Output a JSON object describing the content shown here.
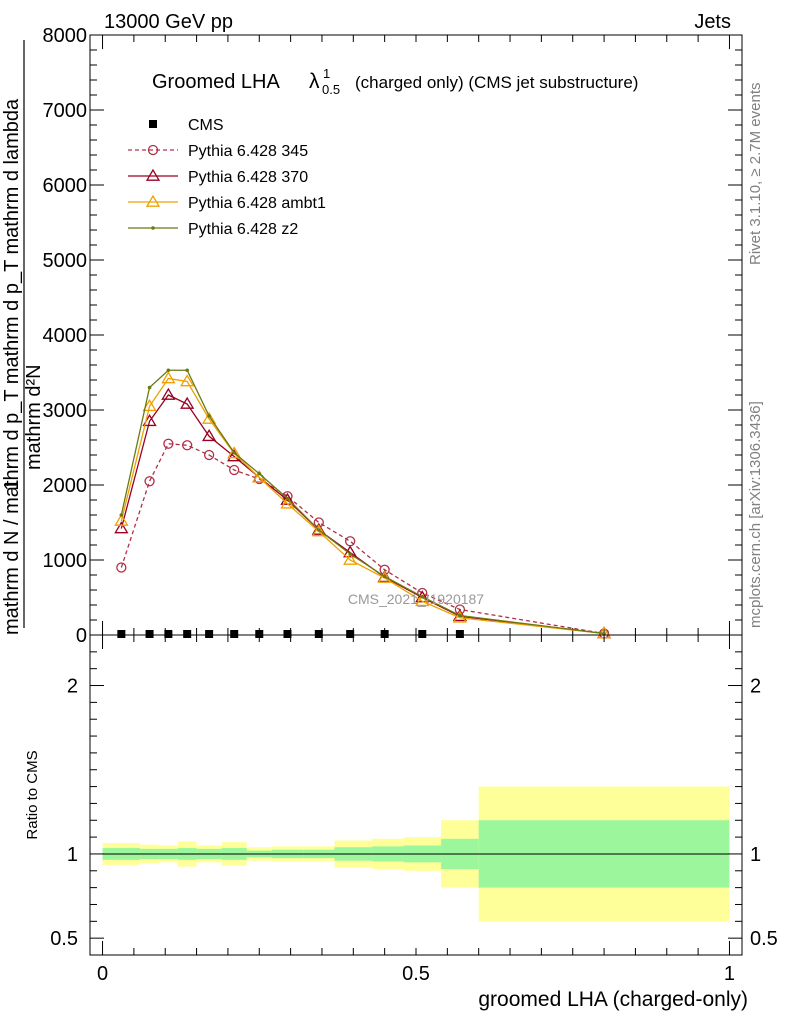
{
  "header": {
    "energy_label": "13000 GeV pp",
    "process_label": "Jets",
    "side_rivet": "Rivet 3.1.10, ≥ 2.7M events",
    "side_mcplots": "mcplots.cern.ch [arXiv:1306.3436]",
    "watermark": "CMS_2021_I1920187"
  },
  "chart_data": [
    {
      "type": "line",
      "title_main": "Groomed LHA",
      "title_symbol": "λ",
      "title_sup": "1",
      "title_sub": "0.5",
      "title_rest": "(charged only) (CMS jet substructure)",
      "ylabel_lines": [
        "1",
        "mathrm d N / mathrm d p_T mathrm d p_T mathrm d lambda",
        "mathrm d²N"
      ],
      "ylim": [
        0,
        8000
      ],
      "yticks": [
        0,
        1000,
        2000,
        3000,
        4000,
        5000,
        6000,
        7000,
        8000
      ],
      "ytick_labels": [
        "0",
        "1000",
        "2000",
        "3000",
        "4000",
        "5000",
        "6000",
        "7000",
        "8000"
      ],
      "xlim": [
        -0.02,
        1.02
      ],
      "legend": [
        {
          "name": "CMS",
          "color": "#000000",
          "marker": "square",
          "dash": false
        },
        {
          "name": "Pythia 6.428 345",
          "color": "#b03048",
          "marker": "circle",
          "dash": true
        },
        {
          "name": "Pythia 6.428 370",
          "color": "#990022",
          "marker": "triangle",
          "dash": false
        },
        {
          "name": "Pythia 6.428 ambt1",
          "color": "#f0a000",
          "marker": "triangle",
          "dash": false
        },
        {
          "name": "Pythia 6.428 z2",
          "color": "#6b7a10",
          "marker": "dot",
          "dash": false
        }
      ],
      "data_x": [
        0.03,
        0.075,
        0.105,
        0.135,
        0.17,
        0.21,
        0.25,
        0.295,
        0.345,
        0.395,
        0.45,
        0.51,
        0.57,
        0.8
      ],
      "cms_points": [
        {
          "x": 0.03,
          "y": 0
        },
        {
          "x": 0.075,
          "y": 0
        },
        {
          "x": 0.105,
          "y": 0
        },
        {
          "x": 0.135,
          "y": 0
        },
        {
          "x": 0.17,
          "y": 0
        },
        {
          "x": 0.21,
          "y": 0
        },
        {
          "x": 0.25,
          "y": 0
        },
        {
          "x": 0.295,
          "y": 0
        },
        {
          "x": 0.345,
          "y": 0
        },
        {
          "x": 0.395,
          "y": 0
        },
        {
          "x": 0.45,
          "y": 0
        },
        {
          "x": 0.51,
          "y": 0
        },
        {
          "x": 0.57,
          "y": 0
        }
      ],
      "series": [
        {
          "key": "p345",
          "values": [
            900,
            2050,
            2550,
            2530,
            2400,
            2200,
            2080,
            1850,
            1500,
            1250,
            870,
            560,
            340,
            20
          ]
        },
        {
          "key": "p370",
          "values": [
            1420,
            2850,
            3200,
            3080,
            2650,
            2380,
            2100,
            1800,
            1400,
            1100,
            770,
            500,
            250,
            20
          ]
        },
        {
          "key": "ambt1",
          "values": [
            1520,
            3050,
            3420,
            3380,
            2880,
            2420,
            2100,
            1750,
            1380,
            1000,
            760,
            450,
            230,
            20
          ]
        },
        {
          "key": "z2",
          "values": [
            1600,
            3300,
            3530,
            3530,
            2920,
            2430,
            2150,
            1820,
            1400,
            1080,
            780,
            510,
            260,
            20
          ]
        }
      ]
    },
    {
      "type": "area",
      "ylabel": "Ratio to CMS",
      "xlabel": "groomed LHA (charged-only)",
      "ylim": [
        0.4,
        2.3
      ],
      "yticks": [
        0.5,
        1,
        2
      ],
      "ytick_labels": [
        "0.5",
        "1",
        "2"
      ],
      "xticks": [
        0,
        0.5,
        1
      ],
      "xtick_labels": [
        "0",
        "0.5",
        "1"
      ],
      "xlim": [
        -0.02,
        1.02
      ],
      "bands": [
        {
          "x0": 0.0,
          "x1": 0.06,
          "inner": 0.035,
          "outer": 0.065
        },
        {
          "x0": 0.06,
          "x1": 0.09,
          "inner": 0.03,
          "outer": 0.055
        },
        {
          "x0": 0.09,
          "x1": 0.12,
          "inner": 0.03,
          "outer": 0.05
        },
        {
          "x0": 0.12,
          "x1": 0.15,
          "inner": 0.035,
          "outer": 0.075
        },
        {
          "x0": 0.15,
          "x1": 0.19,
          "inner": 0.03,
          "outer": 0.05
        },
        {
          "x0": 0.19,
          "x1": 0.23,
          "inner": 0.035,
          "outer": 0.07
        },
        {
          "x0": 0.23,
          "x1": 0.27,
          "inner": 0.02,
          "outer": 0.04
        },
        {
          "x0": 0.27,
          "x1": 0.32,
          "inner": 0.025,
          "outer": 0.045
        },
        {
          "x0": 0.32,
          "x1": 0.37,
          "inner": 0.025,
          "outer": 0.045
        },
        {
          "x0": 0.37,
          "x1": 0.43,
          "inner": 0.04,
          "outer": 0.08
        },
        {
          "x0": 0.43,
          "x1": 0.48,
          "inner": 0.045,
          "outer": 0.09
        },
        {
          "x0": 0.48,
          "x1": 0.54,
          "inner": 0.05,
          "outer": 0.1
        },
        {
          "x0": 0.54,
          "x1": 0.6,
          "inner": 0.09,
          "outer": 0.2
        },
        {
          "x0": 0.6,
          "x1": 1.0,
          "inner": 0.2,
          "outer": 0.4
        }
      ],
      "colors": {
        "inner": "#9cf79c",
        "outer": "#ffff99"
      }
    }
  ]
}
